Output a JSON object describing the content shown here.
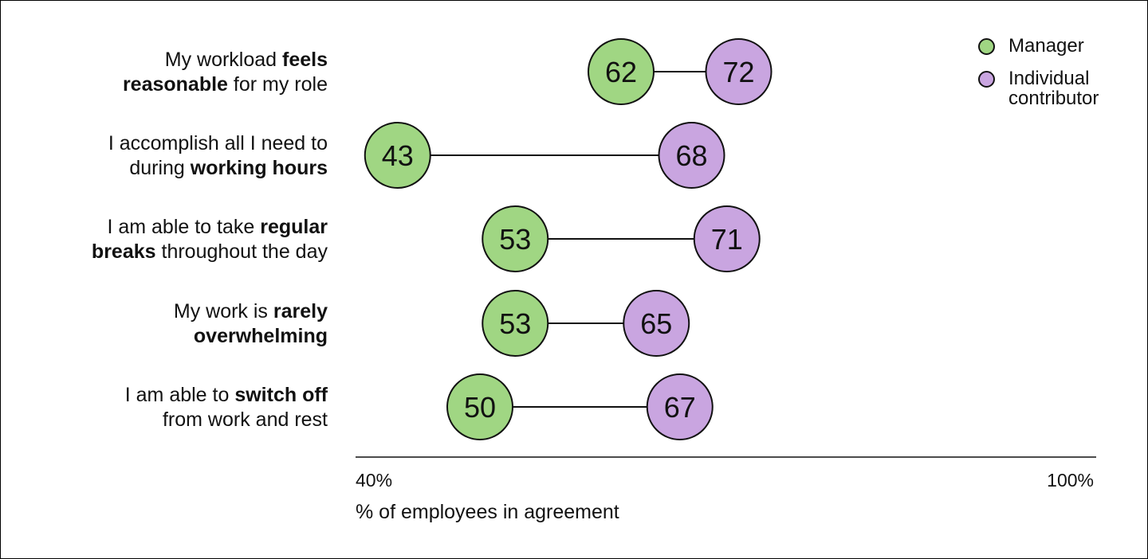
{
  "chart_data": {
    "type": "dumbbell",
    "xlabel": "% of employees in agreement",
    "xlim": [
      40,
      100
    ],
    "x_tick_labels": [
      "40%",
      "100%"
    ],
    "legend_position": "top-right",
    "series": [
      {
        "name": "Manager",
        "color": "#a0d683"
      },
      {
        "name": "Individual contributor",
        "color": "#c9a5e0"
      }
    ],
    "categories": [
      {
        "segments": [
          {
            "t": "My workload ",
            "b": false
          },
          {
            "t": "feels",
            "b": true
          },
          {
            "t": "\n",
            "b": false
          },
          {
            "t": "reasonable",
            "b": true
          },
          {
            "t": " for my role",
            "b": false
          }
        ],
        "manager": 62,
        "individual_contributor": 72
      },
      {
        "segments": [
          {
            "t": "I accomplish all I need to",
            "b": false
          },
          {
            "t": "\n",
            "b": false
          },
          {
            "t": "during ",
            "b": false
          },
          {
            "t": "working hours",
            "b": true
          }
        ],
        "manager": 43,
        "individual_contributor": 68
      },
      {
        "segments": [
          {
            "t": "I am able to take ",
            "b": false
          },
          {
            "t": "regular",
            "b": true
          },
          {
            "t": "\n",
            "b": false
          },
          {
            "t": "breaks",
            "b": true
          },
          {
            "t": " throughout the day",
            "b": false
          }
        ],
        "manager": 53,
        "individual_contributor": 71
      },
      {
        "segments": [
          {
            "t": "My work is ",
            "b": false
          },
          {
            "t": "rarely",
            "b": true
          },
          {
            "t": "\n",
            "b": false
          },
          {
            "t": "overwhelming",
            "b": true
          }
        ],
        "manager": 53,
        "individual_contributor": 65
      },
      {
        "segments": [
          {
            "t": "I am able to ",
            "b": false
          },
          {
            "t": "switch off",
            "b": true
          },
          {
            "t": "\n",
            "b": false
          },
          {
            "t": "from work and rest",
            "b": false
          }
        ],
        "manager": 50,
        "individual_contributor": 67
      }
    ]
  },
  "legend": {
    "manager_line1": "Manager",
    "ic_line1": "Individual",
    "ic_line2": "contributor"
  }
}
